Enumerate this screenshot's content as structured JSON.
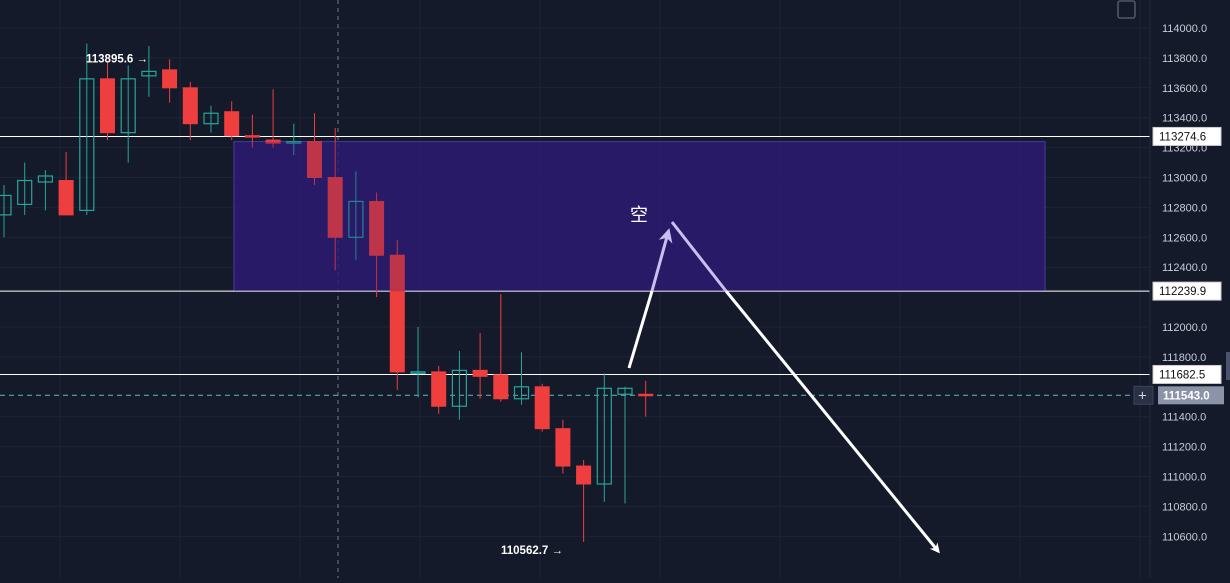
{
  "chart_data": {
    "type": "candlestick",
    "title": "",
    "xlabel": "",
    "ylabel": "",
    "ylim": [
      110460,
      114100
    ],
    "y_ticks": [
      {
        "value": 114000,
        "label": "114000.0"
      },
      {
        "value": 113800,
        "label": "113800.0"
      },
      {
        "value": 113600,
        "label": "113600.0"
      },
      {
        "value": 113400,
        "label": "113400.0"
      },
      {
        "value": 113200,
        "label": "113200.0"
      },
      {
        "value": 113000,
        "label": "113000.0"
      },
      {
        "value": 112800,
        "label": "112800.0"
      },
      {
        "value": 112600,
        "label": "112600.0"
      },
      {
        "value": 112400,
        "label": "112400.0"
      },
      {
        "value": 112000,
        "label": "112000.0"
      },
      {
        "value": 111800,
        "label": "111800.0"
      },
      {
        "value": 111400,
        "label": "111400.0"
      },
      {
        "value": 111200,
        "label": "111200.0"
      },
      {
        "value": 111000,
        "label": "111000.0"
      },
      {
        "value": 110800,
        "label": "110800.0"
      },
      {
        "value": 110600,
        "label": "110600.0"
      }
    ],
    "candles": [
      {
        "o": 112750,
        "h": 112950,
        "l": 112600,
        "c": 112880
      },
      {
        "o": 112820,
        "h": 113100,
        "l": 112750,
        "c": 112980
      },
      {
        "o": 112970,
        "h": 113050,
        "l": 112780,
        "c": 113010
      },
      {
        "o": 112980,
        "h": 113170,
        "l": 112760,
        "c": 112750
      },
      {
        "o": 112780,
        "h": 113895.6,
        "l": 112750,
        "c": 113660
      },
      {
        "o": 113660,
        "h": 113780,
        "l": 113250,
        "c": 113300
      },
      {
        "o": 113300,
        "h": 113750,
        "l": 113100,
        "c": 113660
      },
      {
        "o": 113680,
        "h": 113880,
        "l": 113540,
        "c": 113710
      },
      {
        "o": 113720,
        "h": 113790,
        "l": 113500,
        "c": 113600
      },
      {
        "o": 113600,
        "h": 113640,
        "l": 113250,
        "c": 113360
      },
      {
        "o": 113360,
        "h": 113480,
        "l": 113300,
        "c": 113430
      },
      {
        "o": 113440,
        "h": 113510,
        "l": 113250,
        "c": 113280
      },
      {
        "o": 113280,
        "h": 113420,
        "l": 113200,
        "c": 113270
      },
      {
        "o": 113250,
        "h": 113590,
        "l": 113200,
        "c": 113230
      },
      {
        "o": 113240,
        "h": 113360,
        "l": 113150,
        "c": 113240
      },
      {
        "o": 113240,
        "h": 113430,
        "l": 112950,
        "c": 113000
      },
      {
        "o": 113000,
        "h": 113330,
        "l": 112380,
        "c": 112600
      },
      {
        "o": 112600,
        "h": 113040,
        "l": 112450,
        "c": 112840
      },
      {
        "o": 112840,
        "h": 112900,
        "l": 112200,
        "c": 112480
      },
      {
        "o": 112480,
        "h": 112580,
        "l": 111580,
        "c": 111700
      },
      {
        "o": 111700,
        "h": 112000,
        "l": 111530,
        "c": 111700
      },
      {
        "o": 111700,
        "h": 111740,
        "l": 111420,
        "c": 111470
      },
      {
        "o": 111470,
        "h": 111840,
        "l": 111380,
        "c": 111710
      },
      {
        "o": 111710,
        "h": 111960,
        "l": 111520,
        "c": 111670
      },
      {
        "o": 111680,
        "h": 112220,
        "l": 111500,
        "c": 111520
      },
      {
        "o": 111520,
        "h": 111830,
        "l": 111480,
        "c": 111600
      },
      {
        "o": 111600,
        "h": 111620,
        "l": 111300,
        "c": 111320
      },
      {
        "o": 111320,
        "h": 111380,
        "l": 111020,
        "c": 111070
      },
      {
        "o": 111070,
        "h": 111110,
        "l": 110562.7,
        "c": 110950
      },
      {
        "o": 110950,
        "h": 111690,
        "l": 110830,
        "c": 111590
      },
      {
        "o": 111550,
        "h": 111600,
        "l": 110820,
        "c": 111590
      },
      {
        "o": 111550,
        "h": 111640,
        "l": 111400,
        "c": 111543
      }
    ],
    "horizontal_lines": [
      {
        "value": 113274.6,
        "label": "113274.6"
      },
      {
        "value": 112239.9,
        "label": "112239.9"
      },
      {
        "value": 111682.5,
        "label": "111682.5"
      }
    ],
    "current_price": {
      "value": 111543.0,
      "label": "111543.0"
    },
    "zone": {
      "top": 113240,
      "bottom": 112239.9
    },
    "high_marker": {
      "value": 113895.6,
      "label": "113895.6",
      "arrow": "→"
    },
    "low_marker": {
      "value": 110562.7,
      "label": "110562.7",
      "arrow": "→"
    },
    "annotation": {
      "text": "空"
    },
    "colors": {
      "background": "#151a2a",
      "up": "#26a69a",
      "down": "#ef3e3e",
      "zone_fill": "#2a1b6e",
      "zone_stroke": "#4a3fb0",
      "line": "#ffffff",
      "dashed": "#5aa7a7",
      "axis_text": "#c8ccd6",
      "grid": "#1d2436"
    }
  },
  "ui": {
    "plus_button": "+",
    "fullscreen_icon": "expand-corners-icon"
  }
}
